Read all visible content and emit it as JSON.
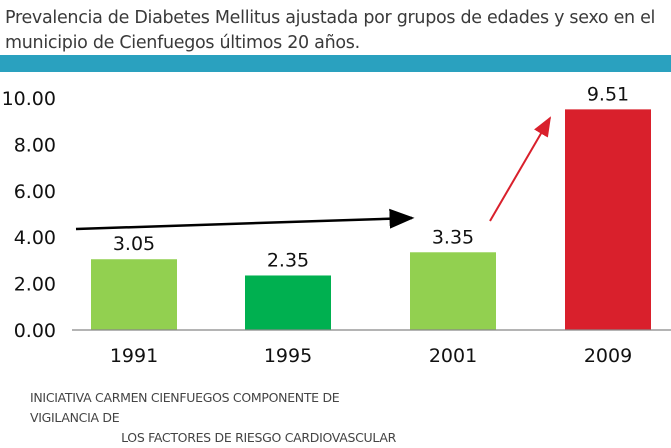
{
  "chart_data": {
    "type": "bar",
    "title": "Prevalencia de Diabetes Mellitus ajustada por grupos de edades y sexo en el municipio de Cienfuegos últimos 20 años.",
    "categories": [
      "1991",
      "1995",
      "2001",
      "2009"
    ],
    "values": [
      3.05,
      2.35,
      3.35,
      9.51
    ],
    "data_labels": [
      "3.05",
      "2.35",
      "3.35",
      "9.51"
    ],
    "colors": [
      "#92d050",
      "#00b050",
      "#92d050",
      "#d9202c"
    ],
    "xlabel": "",
    "ylabel": "",
    "ylim": [
      0,
      10
    ],
    "yticks": [
      "0.00",
      "2.00",
      "4.00",
      "6.00",
      "8.00",
      "10.00"
    ],
    "grid": false,
    "legend": "none",
    "annotations": [
      {
        "type": "arrow",
        "from_category": "1991",
        "to_category": "2001",
        "color": "#000000"
      },
      {
        "type": "arrow",
        "from_category": "2001",
        "to_category": "2009",
        "color": "#d9202c"
      }
    ]
  },
  "source": {
    "line1": "INICIATIVA CARMEN CIENFUEGOS COMPONENTE DE VIGILANCIA DE",
    "line2": "LOS FACTORES DE RIESGO CARDIOVASCULAR"
  },
  "colors": {
    "band": "#2aa1bf"
  }
}
